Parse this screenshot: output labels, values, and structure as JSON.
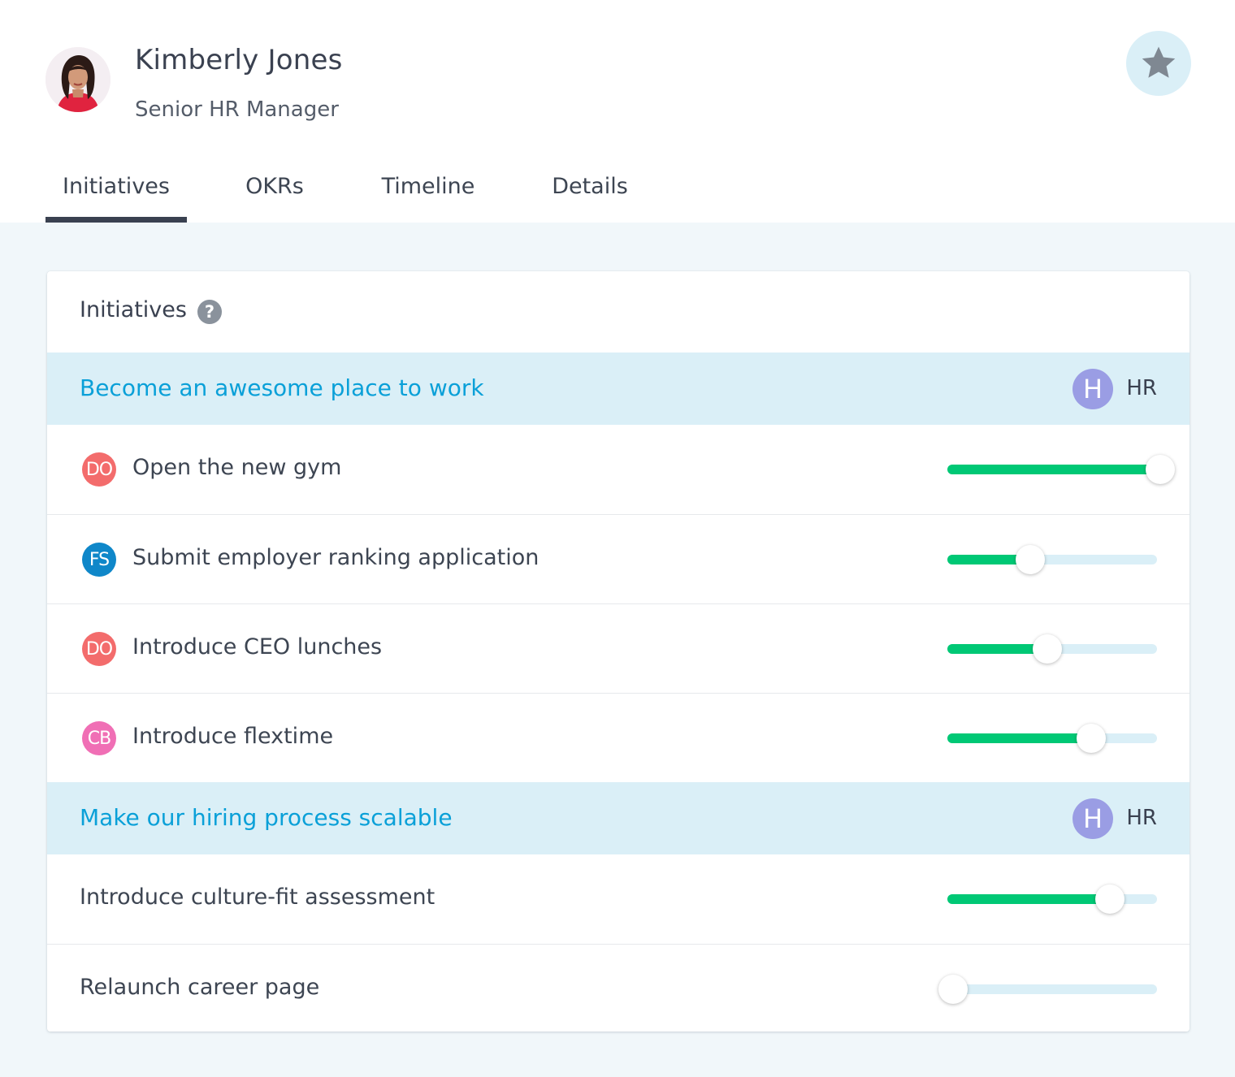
{
  "profile": {
    "name": "Kimberly Jones",
    "role": "Senior HR Manager"
  },
  "icons": {
    "favorite": "star-icon",
    "help": "question-icon"
  },
  "tabs": [
    {
      "label": "Initiatives",
      "active": true
    },
    {
      "label": "OKRs",
      "active": false
    },
    {
      "label": "Timeline",
      "active": false
    },
    {
      "label": "Details",
      "active": false
    }
  ],
  "card": {
    "title": "Initiatives",
    "help_glyph": "?"
  },
  "groups": [
    {
      "title": "Become an awesome place to work",
      "team_initial": "H",
      "team_label": "HR",
      "items": [
        {
          "owner": "DO",
          "owner_color": "#f36c6c",
          "label": "Open the new gym",
          "progress": 1.0
        },
        {
          "owner": "FS",
          "owner_color": "#0f87c9",
          "label": "Submit employer ranking application",
          "progress": 0.38
        },
        {
          "owner": "DO",
          "owner_color": "#f36c6c",
          "label": "Introduce CEO lunches",
          "progress": 0.46
        },
        {
          "owner": "CB",
          "owner_color": "#f06fb5",
          "label": "Introduce flextime",
          "progress": 0.67
        }
      ]
    },
    {
      "title": "Make our hiring process scalable",
      "team_initial": "H",
      "team_label": "HR",
      "items": [
        {
          "owner": "",
          "owner_color": "",
          "label": "Introduce culture-fit assessment",
          "progress": 0.76
        },
        {
          "owner": "",
          "owner_color": "",
          "label": "Relaunch career page",
          "progress": 0.01
        }
      ]
    }
  ],
  "colors": {
    "accent": "#0aa0d8",
    "progress": "#00c875",
    "track": "#daeff7",
    "team_badge": "#9a9de4"
  }
}
